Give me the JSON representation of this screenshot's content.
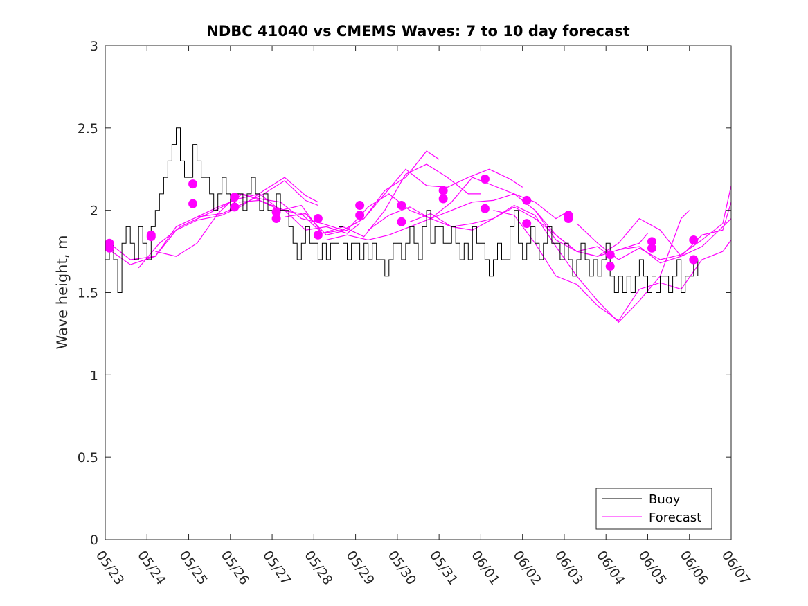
{
  "chart_data": {
    "type": "line",
    "title": "NDBC 41040 vs CMEMS Waves: 7 to 10 day forecast",
    "xlabel": "",
    "ylabel": "Wave height, m",
    "ylim": [
      0,
      3
    ],
    "yticks": [
      0,
      0.5,
      1,
      1.5,
      2,
      2.5,
      3
    ],
    "ytick_labels": [
      "0",
      "0.5",
      "1",
      "1.5",
      "2",
      "2.5",
      "3"
    ],
    "xlim": [
      0,
      15
    ],
    "xtick_labels": [
      "05/23",
      "05/24",
      "05/25",
      "05/26",
      "05/27",
      "05/28",
      "05/29",
      "05/30",
      "05/31",
      "06/01",
      "06/02",
      "06/03",
      "06/04",
      "06/05",
      "06/06",
      "06/07"
    ],
    "grid": false,
    "legend_position": "bottom-right",
    "legend": [
      "Buoy",
      "Forecast"
    ],
    "colors": {
      "buoy": "#000000",
      "forecast": "#ff00ff"
    },
    "buoy": {
      "name": "Buoy",
      "x": [
        0,
        0.1,
        0.2,
        0.3,
        0.4,
        0.5,
        0.6,
        0.7,
        0.8,
        0.9,
        1.0,
        1.1,
        1.2,
        1.3,
        1.4,
        1.5,
        1.6,
        1.7,
        1.8,
        1.9,
        2.0,
        2.1,
        2.2,
        2.3,
        2.4,
        2.5,
        2.6,
        2.7,
        2.8,
        2.9,
        3.0,
        3.1,
        3.2,
        3.3,
        3.4,
        3.5,
        3.6,
        3.7,
        3.8,
        3.9,
        4.0,
        4.1,
        4.2,
        4.3,
        4.4,
        4.5,
        4.6,
        4.7,
        4.8,
        4.9,
        5.0,
        5.1,
        5.2,
        5.3,
        5.4,
        5.5,
        5.6,
        5.7,
        5.8,
        5.9,
        6.0,
        6.1,
        6.2,
        6.3,
        6.4,
        6.5,
        6.6,
        6.7,
        6.8,
        6.9,
        7.0,
        7.1,
        7.2,
        7.3,
        7.4,
        7.5,
        7.6,
        7.7,
        7.8,
        7.9,
        8.0,
        8.1,
        8.2,
        8.3,
        8.4,
        8.5,
        8.6,
        8.7,
        8.8,
        8.9,
        9.0,
        9.1,
        9.2,
        9.3,
        9.4,
        9.5,
        9.6,
        9.7,
        9.8,
        9.9,
        10.0,
        10.1,
        10.2,
        10.3,
        10.4,
        10.5,
        10.6,
        10.7,
        10.8,
        10.9,
        11.0,
        11.1,
        11.2,
        11.3,
        11.4,
        11.5,
        11.6,
        11.7,
        11.8,
        11.9,
        12.0,
        12.1,
        12.2,
        12.3,
        12.4,
        12.5,
        12.6,
        12.7,
        12.8,
        12.9,
        13.0,
        13.1,
        13.2,
        13.3,
        13.4,
        13.5,
        13.6,
        13.7,
        13.8,
        13.9,
        14.0,
        14.1,
        14.2
      ],
      "y": [
        1.7,
        1.8,
        1.7,
        1.5,
        1.8,
        1.9,
        1.8,
        1.7,
        1.9,
        1.8,
        1.7,
        1.9,
        2.0,
        2.1,
        2.2,
        2.3,
        2.4,
        2.5,
        2.3,
        2.2,
        2.2,
        2.4,
        2.3,
        2.2,
        2.2,
        2.1,
        2.0,
        2.1,
        2.2,
        2.1,
        2.0,
        2.1,
        2.1,
        2.0,
        2.1,
        2.2,
        2.1,
        2.0,
        2.1,
        2.0,
        2.0,
        2.1,
        2.0,
        2.0,
        1.9,
        1.8,
        1.7,
        1.8,
        1.9,
        1.8,
        1.8,
        1.7,
        1.8,
        1.7,
        1.8,
        1.8,
        1.9,
        1.8,
        1.7,
        1.8,
        1.8,
        1.7,
        1.8,
        1.7,
        1.8,
        1.7,
        1.7,
        1.6,
        1.7,
        1.8,
        1.8,
        1.7,
        1.8,
        1.9,
        1.8,
        1.7,
        1.9,
        2.0,
        1.8,
        1.9,
        1.9,
        1.8,
        1.8,
        1.9,
        1.8,
        1.7,
        1.8,
        1.7,
        1.9,
        1.8,
        1.8,
        1.7,
        1.6,
        1.7,
        1.8,
        1.7,
        1.7,
        1.9,
        2.0,
        1.8,
        1.7,
        1.8,
        1.9,
        1.8,
        1.7,
        1.8,
        1.9,
        1.8,
        1.8,
        1.7,
        1.8,
        1.7,
        1.6,
        1.7,
        1.8,
        1.7,
        1.6,
        1.7,
        1.6,
        1.7,
        1.8,
        1.6,
        1.5,
        1.6,
        1.5,
        1.6,
        1.5,
        1.6,
        1.7,
        1.6,
        1.5,
        1.6,
        1.5,
        1.6,
        1.6,
        1.5,
        1.6,
        1.7,
        1.5,
        1.6,
        1.6,
        1.7,
        1.6
      ]
    },
    "forecast_series": [
      {
        "name": "",
        "x": [
          0.1,
          0.6,
          1.2,
          1.7,
          2.2,
          2.8,
          3.3,
          3.8,
          4.3,
          4.8,
          5.1
        ],
        "y": [
          1.8,
          1.7,
          1.72,
          1.9,
          1.96,
          1.98,
          2.04,
          2.1,
          2.18,
          2.06,
          2.03
        ]
      },
      {
        "name": "",
        "x": [
          0.1,
          0.6,
          1.2,
          1.7,
          2.2,
          2.8,
          3.3,
          3.8,
          4.3,
          4.8,
          5.1
        ],
        "y": [
          1.76,
          1.67,
          1.72,
          1.88,
          1.94,
          1.97,
          2.03,
          2.12,
          2.2,
          2.09,
          2.05
        ]
      },
      {
        "name": "",
        "x": [
          0.8,
          1.3,
          1.8,
          2.3,
          2.8,
          3.3,
          3.8,
          4.3,
          4.8,
          5.3,
          5.8,
          6.1
        ],
        "y": [
          1.65,
          1.8,
          1.9,
          1.96,
          2.02,
          2.1,
          2.05,
          2.0,
          1.88,
          1.9,
          1.86,
          1.92
        ]
      },
      {
        "name": "",
        "x": [
          1.2,
          1.7,
          2.2,
          2.7,
          3.2,
          3.7,
          4.2,
          4.7,
          5.2,
          5.7,
          6.2,
          6.7,
          7.2,
          7.7,
          8.0
        ],
        "y": [
          1.75,
          1.72,
          1.8,
          1.98,
          2.1,
          2.07,
          2.05,
          1.95,
          1.92,
          1.88,
          1.95,
          2.12,
          2.2,
          2.36,
          2.31
        ]
      },
      {
        "name": "",
        "x": [
          2.2,
          2.7,
          3.2,
          3.7,
          4.2,
          4.7,
          5.2,
          5.7,
          6.2,
          6.7,
          7.2,
          7.7,
          8.2,
          8.7,
          9.0
        ],
        "y": [
          1.96,
          2.02,
          2.07,
          2.1,
          2.0,
          1.98,
          1.86,
          1.9,
          1.84,
          2.0,
          2.22,
          2.28,
          2.2,
          2.1,
          2.1
        ]
      },
      {
        "name": "",
        "x": [
          3.2,
          3.7,
          4.2,
          4.7,
          5.2,
          5.7,
          6.2,
          6.7,
          7.2,
          7.7,
          8.2,
          8.7,
          9.2,
          9.7,
          10.0
        ],
        "y": [
          2.05,
          2.06,
          2.0,
          2.03,
          1.86,
          1.88,
          1.95,
          2.1,
          2.25,
          2.15,
          2.14,
          2.2,
          2.25,
          2.19,
          2.14
        ]
      },
      {
        "name": "",
        "x": [
          4.3,
          4.8,
          5.3,
          5.8,
          6.3,
          6.8,
          7.3,
          7.8,
          8.3,
          8.8,
          9.3,
          9.8,
          10.3,
          10.8,
          11.0
        ],
        "y": [
          1.96,
          1.98,
          1.85,
          1.88,
          2.02,
          2.1,
          2.0,
          1.95,
          2.05,
          2.2,
          2.15,
          2.1,
          2.05,
          1.95,
          1.98
        ]
      },
      {
        "name": "",
        "x": [
          5.3,
          5.8,
          6.3,
          6.8,
          7.3,
          7.8,
          8.3,
          8.8,
          9.3,
          9.8,
          10.3,
          10.8,
          11.3,
          11.8,
          12.0
        ],
        "y": [
          1.82,
          1.85,
          1.82,
          1.85,
          1.9,
          1.95,
          2.0,
          2.05,
          2.06,
          2.1,
          2.0,
          1.82,
          1.75,
          1.78,
          1.74
        ]
      },
      {
        "name": "",
        "x": [
          6.3,
          6.8,
          7.3,
          7.8,
          8.3,
          8.8,
          9.3,
          9.8,
          10.3,
          10.8,
          11.3,
          11.8,
          12.3,
          12.8,
          13.0
        ],
        "y": [
          1.88,
          1.97,
          2.02,
          1.95,
          1.9,
          1.88,
          1.95,
          2.02,
          1.95,
          1.85,
          1.75,
          1.72,
          1.76,
          1.8,
          1.86
        ]
      },
      {
        "name": "",
        "x": [
          7.3,
          7.8,
          8.3,
          8.8,
          9.3,
          9.8,
          10.3,
          10.8,
          11.3,
          11.8,
          12.3,
          12.8,
          13.3,
          13.8,
          14.0
        ],
        "y": [
          1.93,
          1.98,
          1.9,
          1.92,
          1.95,
          2.03,
          1.97,
          1.78,
          1.6,
          1.45,
          1.32,
          1.45,
          1.6,
          1.95,
          2.0
        ]
      },
      {
        "name": "",
        "x": [
          9.3,
          9.8,
          10.3,
          10.8,
          11.3,
          11.8,
          12.3,
          12.8,
          13.3,
          13.8,
          14.3,
          14.8,
          15.0
        ],
        "y": [
          2.0,
          1.97,
          1.8,
          1.6,
          1.55,
          1.42,
          1.33,
          1.52,
          1.56,
          1.52,
          1.7,
          1.75,
          1.82
        ]
      },
      {
        "name": "",
        "x": [
          10.3,
          10.8,
          11.3,
          11.8,
          12.3,
          12.8,
          13.3,
          13.8,
          14.3,
          14.8,
          15.0
        ],
        "y": [
          2.0,
          1.85,
          1.75,
          1.72,
          1.8,
          1.95,
          1.88,
          1.72,
          1.78,
          1.9,
          1.95
        ]
      },
      {
        "name": "",
        "x": [
          11.3,
          11.8,
          12.3,
          12.8,
          13.3,
          13.8,
          14.3,
          14.8,
          15.0
        ],
        "y": [
          1.92,
          1.8,
          1.7,
          1.77,
          1.7,
          1.73,
          1.82,
          1.92,
          2.15
        ]
      },
      {
        "name": "",
        "x": [
          12.3,
          12.8,
          13.3,
          13.8,
          14.3,
          14.8,
          15.0
        ],
        "y": [
          1.76,
          1.78,
          1.68,
          1.72,
          1.85,
          1.88,
          2.05
        ]
      }
    ],
    "forecast_points": [
      [
        0.1,
        1.8
      ],
      [
        0.1,
        1.77
      ],
      [
        1.1,
        1.84
      ],
      [
        1.1,
        1.85
      ],
      [
        2.1,
        2.16
      ],
      [
        2.1,
        2.04
      ],
      [
        3.1,
        2.08
      ],
      [
        3.1,
        2.02
      ],
      [
        4.1,
        1.99
      ],
      [
        4.1,
        1.95
      ],
      [
        5.1,
        1.95
      ],
      [
        5.1,
        1.85
      ],
      [
        6.1,
        2.03
      ],
      [
        6.1,
        1.97
      ],
      [
        7.1,
        2.03
      ],
      [
        7.1,
        1.93
      ],
      [
        8.1,
        2.12
      ],
      [
        8.1,
        2.07
      ],
      [
        9.1,
        2.19
      ],
      [
        9.1,
        2.01
      ],
      [
        10.1,
        2.06
      ],
      [
        10.1,
        1.92
      ],
      [
        11.1,
        1.97
      ],
      [
        11.1,
        1.95
      ],
      [
        12.1,
        1.73
      ],
      [
        12.1,
        1.66
      ],
      [
        13.1,
        1.81
      ],
      [
        13.1,
        1.77
      ],
      [
        14.1,
        1.82
      ],
      [
        14.1,
        1.7
      ]
    ]
  }
}
